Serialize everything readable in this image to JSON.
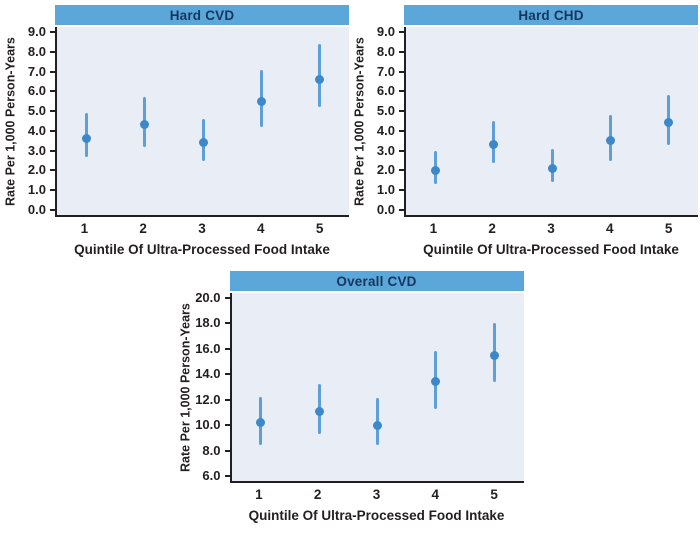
{
  "figure": {
    "description_colors": {
      "title_bar_background": "#5ba7d9",
      "title_text": "#16365f",
      "plot_background": "#e9eef6",
      "ci_line": "#5c9fd9",
      "point_marker": "#3c88c9",
      "axis_and_text": "#231f20",
      "page_background": "#ffffff"
    }
  },
  "chart_data": [
    {
      "type": "scatter",
      "title": "Hard CVD",
      "xlabel": "Quintile Of Ultra-Processed Food Intake",
      "ylabel": "Rate Per 1,000 Person-Years",
      "categories": [
        "1",
        "2",
        "3",
        "4",
        "5"
      ],
      "ylim": [
        0,
        9
      ],
      "yticks": [
        0,
        1,
        2,
        3,
        4,
        5,
        6,
        7,
        8,
        9
      ],
      "grid": false,
      "legend": "none",
      "error_bars": "95% CI",
      "series": [
        {
          "name": "Rate per 1,000 person-years",
          "points": [
            {
              "x": "1",
              "est": 3.6,
              "lo": 2.7,
              "hi": 4.9
            },
            {
              "x": "2",
              "est": 4.3,
              "lo": 3.2,
              "hi": 5.7
            },
            {
              "x": "3",
              "est": 3.4,
              "lo": 2.5,
              "hi": 4.6
            },
            {
              "x": "4",
              "est": 5.5,
              "lo": 4.2,
              "hi": 7.1
            },
            {
              "x": "5",
              "est": 6.6,
              "lo": 5.2,
              "hi": 8.4
            }
          ]
        }
      ]
    },
    {
      "type": "scatter",
      "title": "Hard CHD",
      "xlabel": "Quintile Of Ultra-Processed Food Intake",
      "ylabel": "Rate Per 1,000 Person-Years",
      "categories": [
        "1",
        "2",
        "3",
        "4",
        "5"
      ],
      "ylim": [
        0,
        9
      ],
      "yticks": [
        0,
        1,
        2,
        3,
        4,
        5,
        6,
        7,
        8,
        9
      ],
      "grid": false,
      "legend": "none",
      "error_bars": "95% CI",
      "series": [
        {
          "name": "Rate per 1,000 person-years",
          "points": [
            {
              "x": "1",
              "est": 2.0,
              "lo": 1.3,
              "hi": 3.0
            },
            {
              "x": "2",
              "est": 3.3,
              "lo": 2.4,
              "hi": 4.5
            },
            {
              "x": "3",
              "est": 2.1,
              "lo": 1.4,
              "hi": 3.1
            },
            {
              "x": "4",
              "est": 3.5,
              "lo": 2.5,
              "hi": 4.8
            },
            {
              "x": "5",
              "est": 4.4,
              "lo": 3.3,
              "hi": 5.8
            }
          ]
        }
      ]
    },
    {
      "type": "scatter",
      "title": "Overall CVD",
      "xlabel": "Quintile Of Ultra-Processed Food Intake",
      "ylabel": "Rate Per 1,000 Person-Years",
      "categories": [
        "1",
        "2",
        "3",
        "4",
        "5"
      ],
      "ylim": [
        6,
        20
      ],
      "yticks": [
        6,
        8,
        10,
        12,
        14,
        16,
        18,
        20
      ],
      "grid": false,
      "legend": "none",
      "error_bars": "95% CI",
      "series": [
        {
          "name": "Rate per 1,000 person-years",
          "points": [
            {
              "x": "1",
              "est": 10.2,
              "lo": 8.4,
              "hi": 12.2
            },
            {
              "x": "2",
              "est": 11.1,
              "lo": 9.3,
              "hi": 13.2
            },
            {
              "x": "3",
              "est": 10.0,
              "lo": 8.4,
              "hi": 12.1
            },
            {
              "x": "4",
              "est": 13.4,
              "lo": 11.3,
              "hi": 15.8
            },
            {
              "x": "5",
              "est": 15.5,
              "lo": 13.4,
              "hi": 18.0
            }
          ]
        }
      ]
    }
  ]
}
